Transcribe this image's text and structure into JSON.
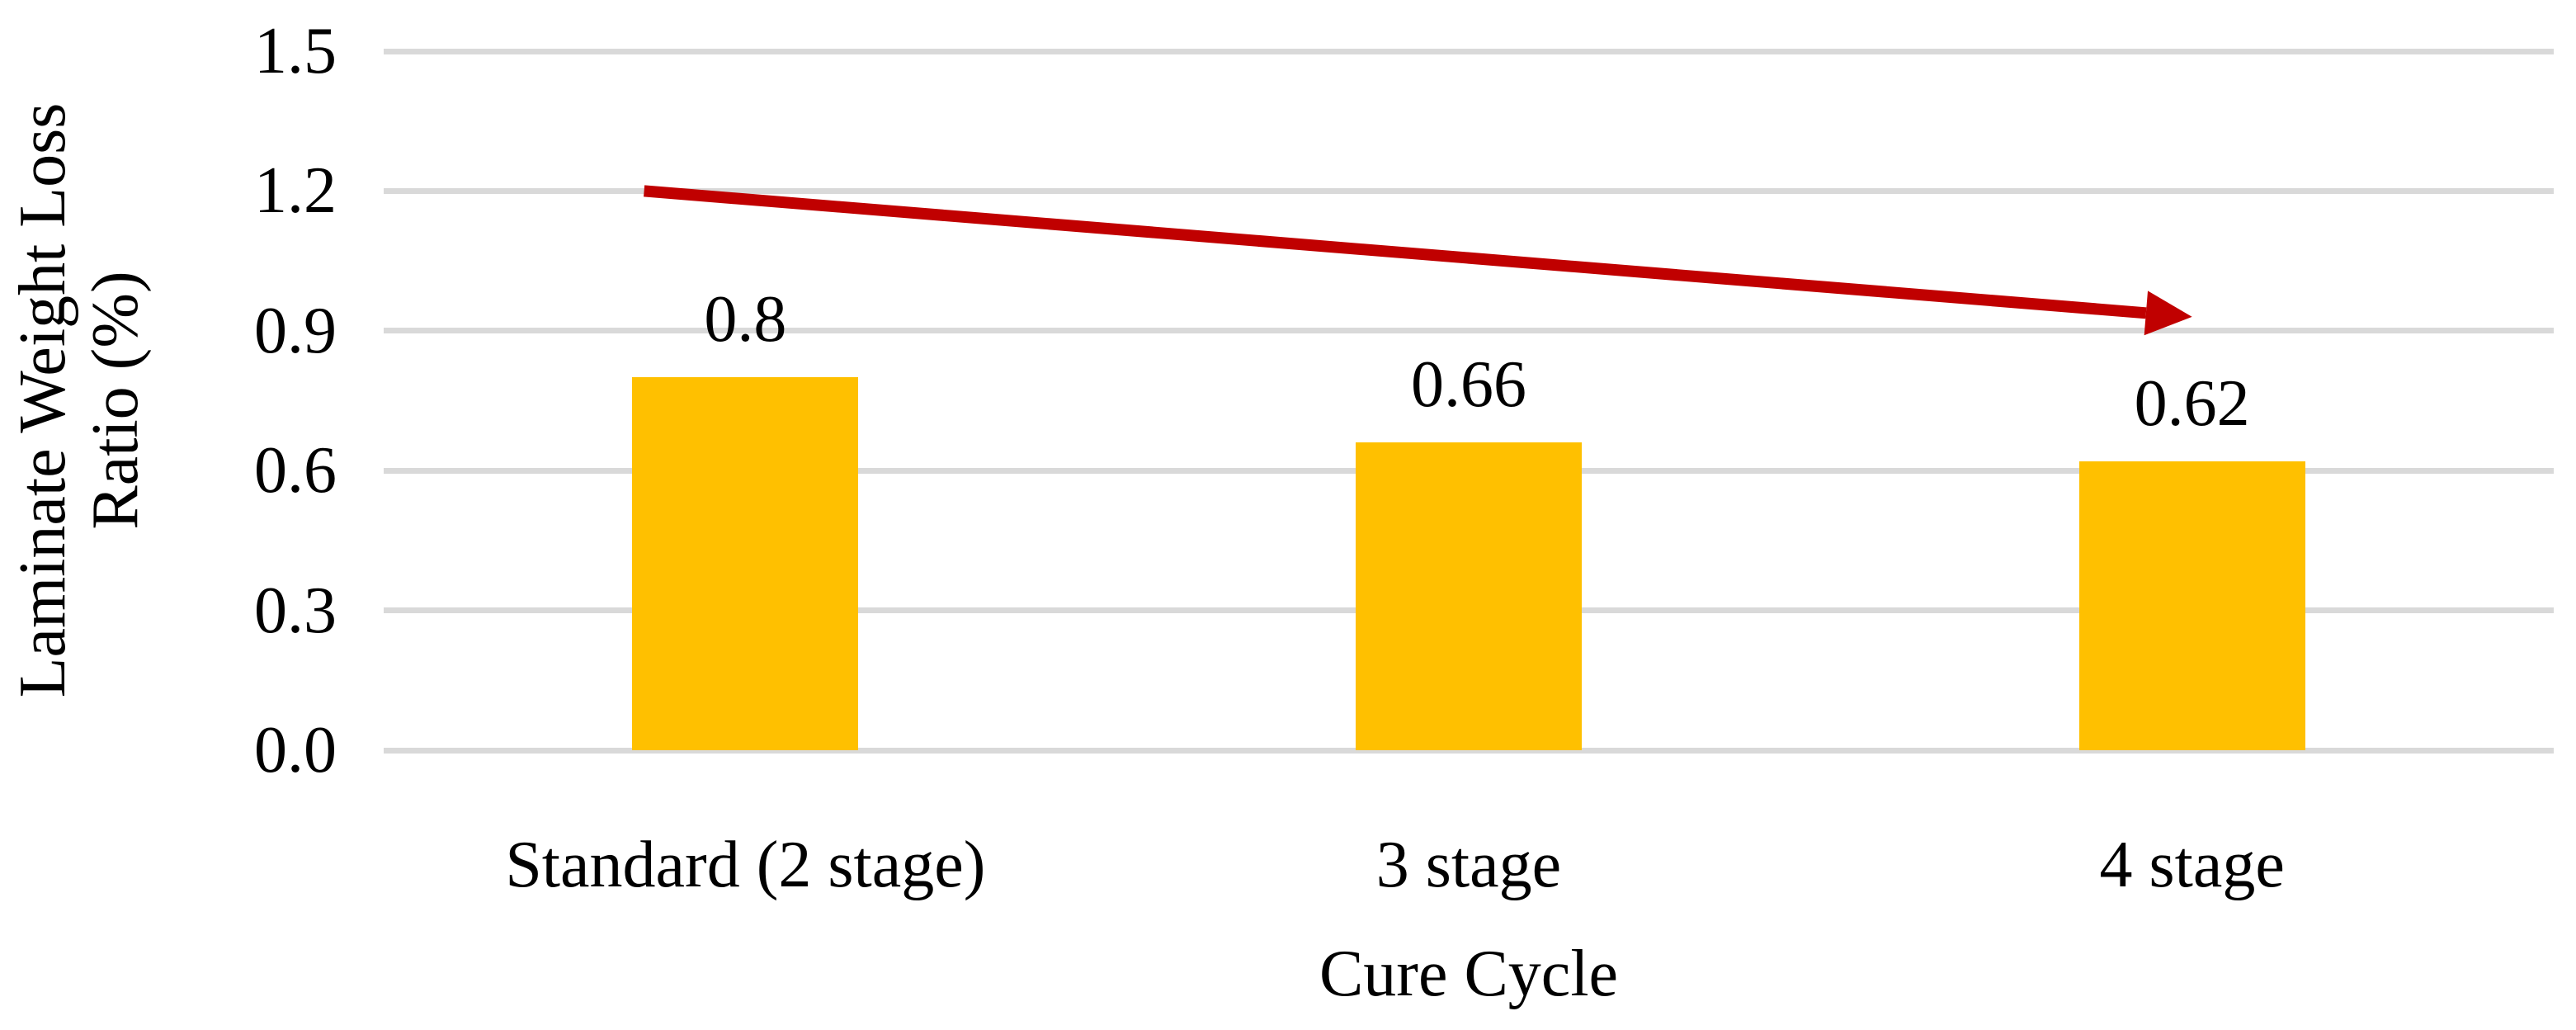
{
  "chart_data": {
    "type": "bar",
    "title": "",
    "categories": [
      "Standard (2 stage)",
      "3 stage",
      "4 stage"
    ],
    "values": [
      0.8,
      0.66,
      0.62
    ],
    "bar_value_labels": [
      "0.8",
      "0.66",
      "0.62"
    ],
    "xlabel": "Cure Cycle",
    "ylabel": "Laminate Weight Loss Ratio (%)",
    "ylabel_lines": [
      "Laminate Weight Loss",
      "Ratio (%)"
    ],
    "ylim": [
      0,
      1.5
    ],
    "ytick_step": 0.3,
    "yticks": [
      "0.0",
      "0.3",
      "0.6",
      "0.9",
      "1.2",
      "1.5"
    ],
    "grid": true,
    "legend": false,
    "bar_color": "#FFC000",
    "gridline_color": "#D9D9D9",
    "text_color": "#000000",
    "trend_arrow": {
      "color": "#C00000",
      "x1_band": 0.36,
      "y1_value": 1.2,
      "x2_band": 2.5,
      "y2_value": 0.93
    }
  }
}
